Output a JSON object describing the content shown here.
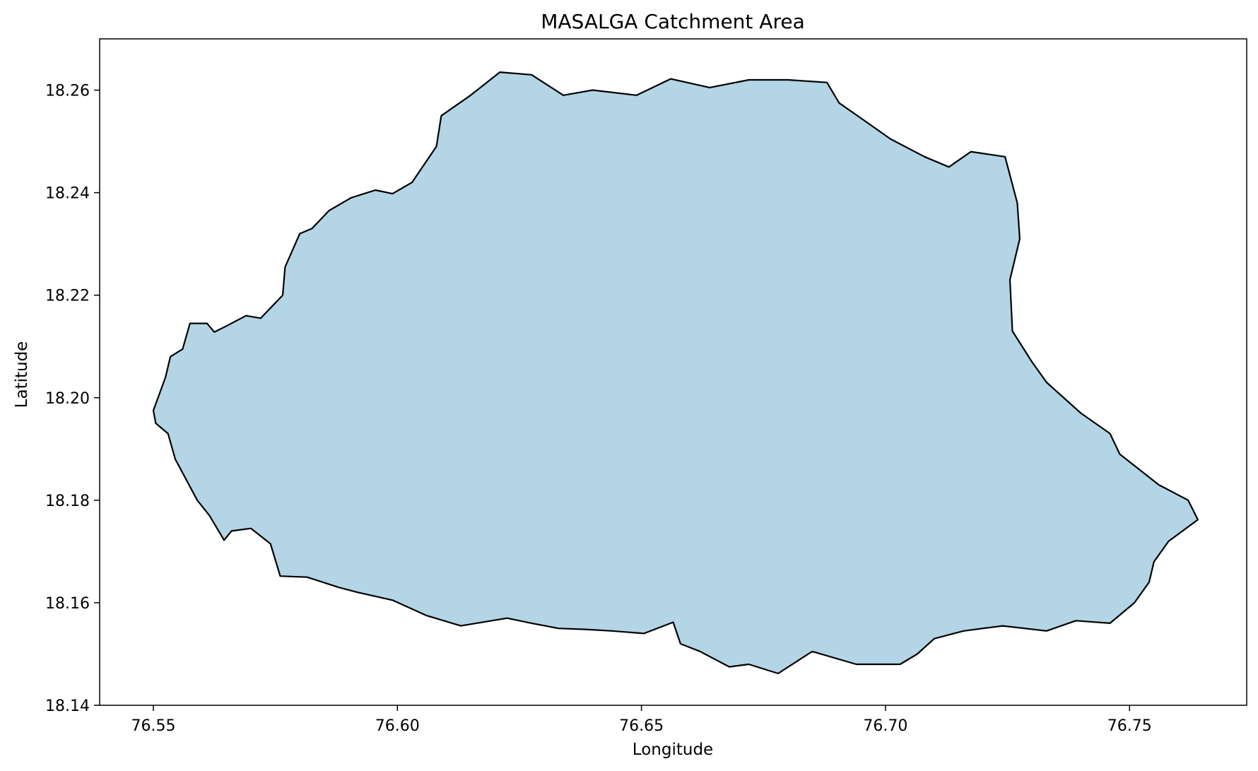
{
  "chart_data": {
    "type": "map",
    "title": "MASALGA Catchment Area",
    "xlabel": "Longitude",
    "ylabel": "Latitude",
    "xlim": [
      76.539,
      76.774
    ],
    "ylim": [
      18.14,
      18.27
    ],
    "xticks": [
      76.55,
      76.6,
      76.65,
      76.7,
      76.75
    ],
    "xtick_labels": [
      "76.55",
      "76.60",
      "76.65",
      "76.70",
      "76.75"
    ],
    "yticks": [
      18.14,
      18.16,
      18.18,
      18.2,
      18.22,
      18.24,
      18.26
    ],
    "ytick_labels": [
      "18.14",
      "18.16",
      "18.18",
      "18.20",
      "18.22",
      "18.24",
      "18.26"
    ],
    "grid": false,
    "fill_color": "#b3d5e6",
    "edge_color": "#000000",
    "boundary": [
      [
        76.55,
        18.1975
      ],
      [
        76.5525,
        18.204
      ],
      [
        76.5535,
        18.208
      ],
      [
        76.556,
        18.2095
      ],
      [
        76.5575,
        18.2145
      ],
      [
        76.561,
        18.2145
      ],
      [
        76.5625,
        18.2128
      ],
      [
        76.565,
        18.214
      ],
      [
        76.569,
        18.216
      ],
      [
        76.572,
        18.2155
      ],
      [
        76.5765,
        18.22
      ],
      [
        76.577,
        18.2255
      ],
      [
        76.58,
        18.232
      ],
      [
        76.5825,
        18.233
      ],
      [
        76.586,
        18.2365
      ],
      [
        76.5905,
        18.239
      ],
      [
        76.5955,
        18.2405
      ],
      [
        76.599,
        18.2398
      ],
      [
        76.603,
        18.242
      ],
      [
        76.608,
        18.249
      ],
      [
        76.609,
        18.255
      ],
      [
        76.615,
        18.259
      ],
      [
        76.621,
        18.2635
      ],
      [
        76.6275,
        18.263
      ],
      [
        76.634,
        18.259
      ],
      [
        76.64,
        18.26
      ],
      [
        76.649,
        18.259
      ],
      [
        76.656,
        18.2622
      ],
      [
        76.664,
        18.2605
      ],
      [
        76.672,
        18.262
      ],
      [
        76.68,
        18.262
      ],
      [
        76.688,
        18.2615
      ],
      [
        76.6905,
        18.2575
      ],
      [
        76.695,
        18.2545
      ],
      [
        76.701,
        18.2505
      ],
      [
        76.708,
        18.247
      ],
      [
        76.713,
        18.245
      ],
      [
        76.7175,
        18.248
      ],
      [
        76.7245,
        18.247
      ],
      [
        76.727,
        18.238
      ],
      [
        76.7275,
        18.231
      ],
      [
        76.7255,
        18.223
      ],
      [
        76.726,
        18.213
      ],
      [
        76.73,
        18.207
      ],
      [
        76.733,
        18.203
      ],
      [
        76.74,
        18.197
      ],
      [
        76.746,
        18.193
      ],
      [
        76.748,
        18.189
      ],
      [
        76.756,
        18.183
      ],
      [
        76.762,
        18.18
      ],
      [
        76.764,
        18.1762
      ],
      [
        76.758,
        18.172
      ],
      [
        76.755,
        18.168
      ],
      [
        76.754,
        18.164
      ],
      [
        76.751,
        18.16
      ],
      [
        76.746,
        18.156
      ],
      [
        76.739,
        18.1565
      ],
      [
        76.733,
        18.1545
      ],
      [
        76.724,
        18.1555
      ],
      [
        76.716,
        18.1545
      ],
      [
        76.71,
        18.153
      ],
      [
        76.7065,
        18.15
      ],
      [
        76.703,
        18.148
      ],
      [
        76.694,
        18.148
      ],
      [
        76.685,
        18.1505
      ],
      [
        76.678,
        18.1462
      ],
      [
        76.672,
        18.148
      ],
      [
        76.668,
        18.1475
      ],
      [
        76.662,
        18.1505
      ],
      [
        76.658,
        18.152
      ],
      [
        76.6565,
        18.1562
      ],
      [
        76.6505,
        18.154
      ],
      [
        76.644,
        18.1545
      ],
      [
        76.6385,
        18.1548
      ],
      [
        76.633,
        18.155
      ],
      [
        76.6275,
        18.156
      ],
      [
        76.6225,
        18.157
      ],
      [
        76.613,
        18.1555
      ],
      [
        76.606,
        18.1575
      ],
      [
        76.599,
        18.1605
      ],
      [
        76.592,
        18.162
      ],
      [
        76.588,
        18.163
      ],
      [
        76.5815,
        18.165
      ],
      [
        76.576,
        18.1652
      ],
      [
        76.574,
        18.1715
      ],
      [
        76.57,
        18.1745
      ],
      [
        76.566,
        18.174
      ],
      [
        76.5645,
        18.1722
      ],
      [
        76.5615,
        18.177
      ],
      [
        76.559,
        18.18
      ],
      [
        76.5545,
        18.188
      ],
      [
        76.553,
        18.193
      ],
      [
        76.5505,
        18.195
      ],
      [
        76.55,
        18.1975
      ]
    ]
  }
}
